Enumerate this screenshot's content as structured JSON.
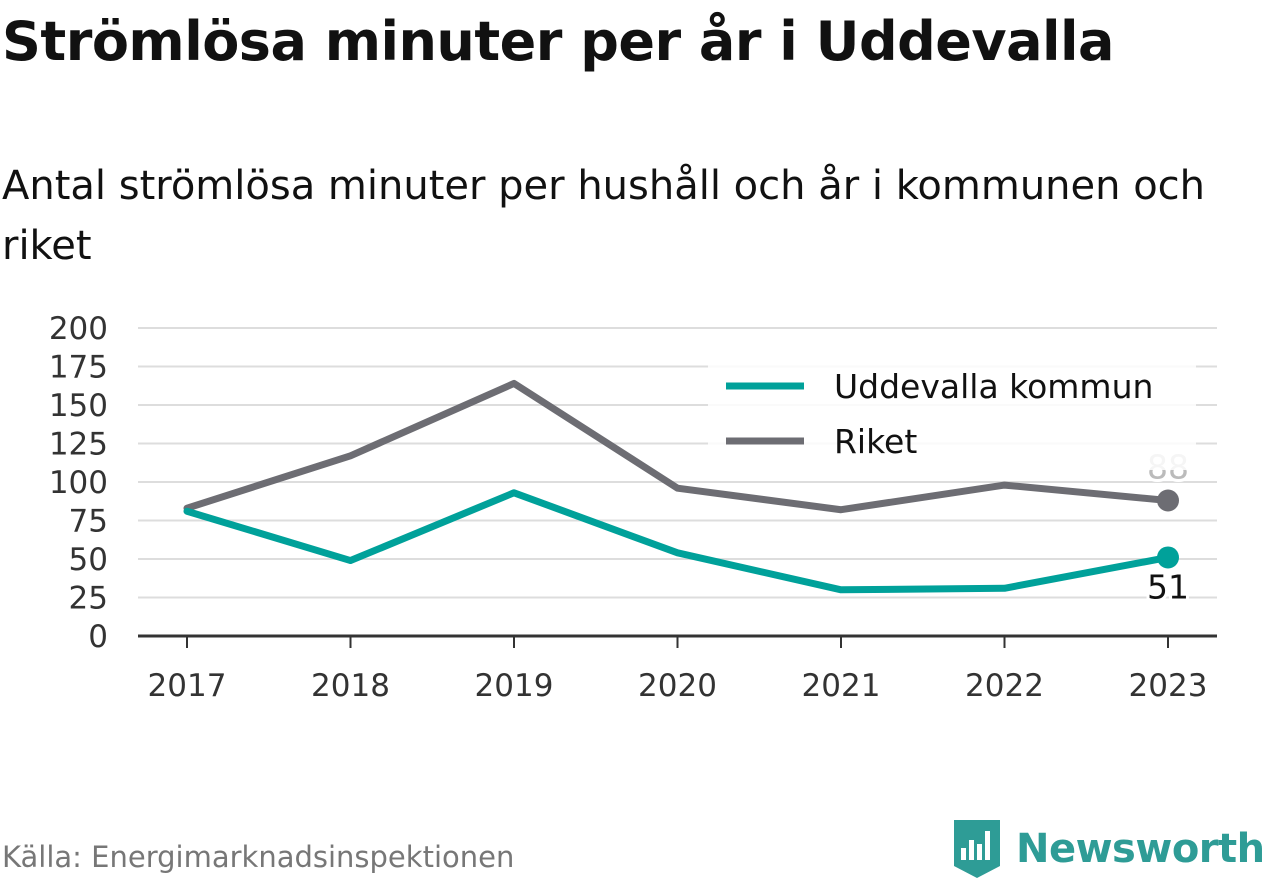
{
  "header": {
    "title": "Strömlösa minuter per år i Uddevalla",
    "subtitle": "Antal strömlösa minuter per hushåll och år i kommunen och riket"
  },
  "footer": {
    "source": "Källa: Energimarknadsinspektionen",
    "brand": "Newsworthy",
    "brand_icon": "bar-chart-badge-icon"
  },
  "colors": {
    "uddevalla": "#00a19a",
    "riket": "#6d6d73",
    "grid": "#dddddd",
    "axis": "#333333",
    "brand": "#2e9c96"
  },
  "chart_data": {
    "type": "line",
    "title": "Strömlösa minuter per år i Uddevalla",
    "subtitle": "Antal strömlösa minuter per hushåll och år i kommunen och riket",
    "xlabel": "",
    "ylabel": "",
    "x": [
      "2017",
      "2018",
      "2019",
      "2020",
      "2021",
      "2022",
      "2023"
    ],
    "ylim": [
      0,
      200
    ],
    "yticks": [
      0,
      25,
      50,
      75,
      100,
      125,
      150,
      175,
      200
    ],
    "grid": true,
    "legend_position": "top-right",
    "series": [
      {
        "name": "Uddevalla kommun",
        "color": "#00a19a",
        "values": [
          81,
          49,
          93,
          54,
          30,
          31,
          51
        ],
        "end_label": "51"
      },
      {
        "name": "Riket",
        "color": "#6d6d73",
        "values": [
          83,
          117,
          164,
          96,
          82,
          98,
          88
        ],
        "end_label": "88"
      }
    ]
  }
}
